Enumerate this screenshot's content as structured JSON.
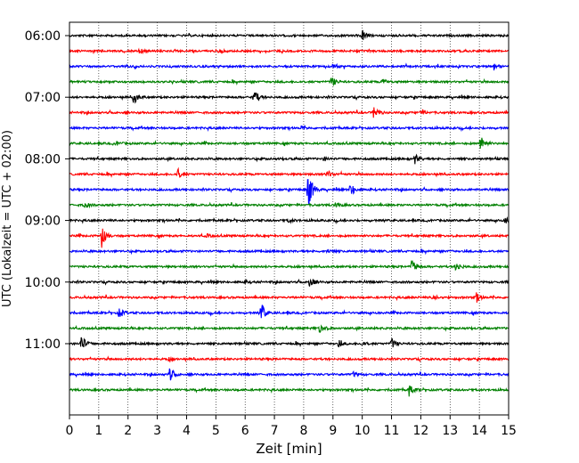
{
  "chart_data": {
    "type": "line",
    "title": "",
    "xlabel": "Zeit  [min]",
    "ylabel": "UTC (Lokalzeit = UTC + 02:00)",
    "xlim": [
      0,
      15
    ],
    "xticks": [
      0,
      1,
      2,
      3,
      4,
      5,
      6,
      7,
      8,
      9,
      10,
      11,
      12,
      13,
      14,
      15
    ],
    "ylim_hours": [
      6.0,
      11.983
    ],
    "yticks": [
      {
        "label": "06:00",
        "hour": 6.0
      },
      {
        "label": "07:00",
        "hour": 7.0
      },
      {
        "label": "08:00",
        "hour": 8.0
      },
      {
        "label": "09:00",
        "hour": 9.0
      },
      {
        "label": "10:00",
        "hour": 10.0
      },
      {
        "label": "11:00",
        "hour": 11.0
      }
    ],
    "grid_x": true,
    "grid_style": "dotted",
    "trace_interval_min": 15,
    "color_cycle": [
      "#000000",
      "#ff0000",
      "#0000ff",
      "#008000"
    ],
    "traces": [
      {
        "start": "06:00",
        "color": "#000000",
        "events": [
          [
            10.0,
            0.35
          ]
        ]
      },
      {
        "start": "06:15",
        "color": "#ff0000",
        "events": [
          [
            2.4,
            0.15
          ],
          [
            5.1,
            0.12
          ]
        ]
      },
      {
        "start": "06:30",
        "color": "#0000ff",
        "events": [
          [
            14.5,
            0.25
          ],
          [
            9.0,
            0.1
          ]
        ]
      },
      {
        "start": "06:45",
        "color": "#008000",
        "events": [
          [
            8.95,
            0.35
          ],
          [
            10.7,
            0.2
          ]
        ]
      },
      {
        "start": "07:00",
        "color": "#000000",
        "events": [
          [
            2.2,
            0.45
          ],
          [
            6.3,
            0.55
          ]
        ]
      },
      {
        "start": "07:15",
        "color": "#ff0000",
        "events": [
          [
            10.4,
            0.45
          ],
          [
            12.0,
            0.15
          ]
        ]
      },
      {
        "start": "07:30",
        "color": "#0000ff",
        "events": [
          [
            7.9,
            0.12
          ]
        ]
      },
      {
        "start": "07:45",
        "color": "#008000",
        "events": [
          [
            14.05,
            0.65
          ],
          [
            1.6,
            0.12
          ]
        ]
      },
      {
        "start": "08:00",
        "color": "#000000",
        "events": [
          [
            11.8,
            0.3
          ],
          [
            8.7,
            0.12
          ]
        ]
      },
      {
        "start": "08:15",
        "color": "#ff0000",
        "events": [
          [
            3.7,
            0.35
          ],
          [
            8.8,
            0.25
          ]
        ]
      },
      {
        "start": "08:30",
        "color": "#0000ff",
        "events": [
          [
            8.15,
            1.5
          ],
          [
            9.6,
            0.5
          ]
        ]
      },
      {
        "start": "08:45",
        "color": "#008000",
        "events": [
          [
            0.5,
            0.25
          ],
          [
            9.1,
            0.15
          ]
        ]
      },
      {
        "start": "09:00",
        "color": "#000000",
        "events": [
          [
            14.9,
            0.25
          ],
          [
            7.5,
            0.12
          ]
        ]
      },
      {
        "start": "09:15",
        "color": "#ff0000",
        "events": [
          [
            1.1,
            0.8
          ],
          [
            4.7,
            0.1
          ]
        ]
      },
      {
        "start": "09:30",
        "color": "#0000ff",
        "events": [
          [
            8.8,
            0.12
          ]
        ]
      },
      {
        "start": "09:45",
        "color": "#008000",
        "events": [
          [
            11.7,
            0.55
          ],
          [
            13.2,
            0.35
          ]
        ]
      },
      {
        "start": "10:00",
        "color": "#000000",
        "events": [
          [
            8.2,
            0.35
          ],
          [
            6.0,
            0.1
          ]
        ]
      },
      {
        "start": "10:15",
        "color": "#ff0000",
        "events": [
          [
            12.4,
            0.2
          ],
          [
            13.9,
            0.3
          ]
        ]
      },
      {
        "start": "10:30",
        "color": "#0000ff",
        "events": [
          [
            6.55,
            0.65
          ],
          [
            1.7,
            0.3
          ]
        ]
      },
      {
        "start": "10:45",
        "color": "#008000",
        "events": [
          [
            8.55,
            0.35
          ]
        ]
      },
      {
        "start": "11:00",
        "color": "#000000",
        "events": [
          [
            0.4,
            0.6
          ],
          [
            11.0,
            0.35
          ],
          [
            9.2,
            0.2
          ],
          [
            10.0,
            0.15
          ]
        ]
      },
      {
        "start": "11:15",
        "color": "#ff0000",
        "events": [
          [
            3.4,
            0.12
          ]
        ]
      },
      {
        "start": "11:30",
        "color": "#0000ff",
        "events": [
          [
            3.4,
            0.5
          ],
          [
            9.7,
            0.15
          ]
        ]
      },
      {
        "start": "11:45",
        "color": "#008000",
        "events": [
          [
            11.6,
            0.4
          ]
        ]
      }
    ]
  }
}
